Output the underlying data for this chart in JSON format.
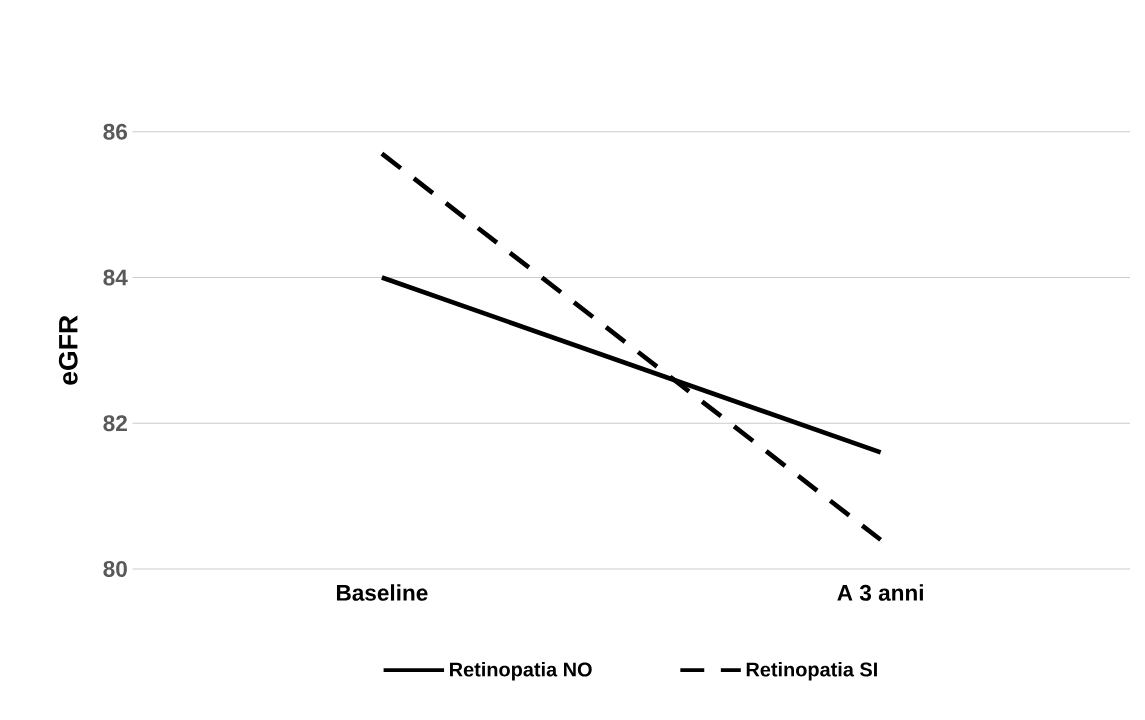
{
  "chart_data": {
    "type": "line",
    "ylabel": "eGFR",
    "categories": [
      "Baseline",
      "A 3 anni"
    ],
    "series": [
      {
        "name": "Retinopatia NO",
        "color": "#000000",
        "line_style": "solid",
        "values": [
          84.0,
          81.6
        ]
      },
      {
        "name": "Retinopatia SI",
        "color": "#000000",
        "line_style": "dashed",
        "values": [
          85.7,
          80.4
        ]
      }
    ],
    "ylim": [
      80,
      86
    ],
    "yticks": [
      80,
      82,
      84,
      86
    ],
    "grid": "y",
    "legend": "bottom",
    "marker": "none"
  }
}
